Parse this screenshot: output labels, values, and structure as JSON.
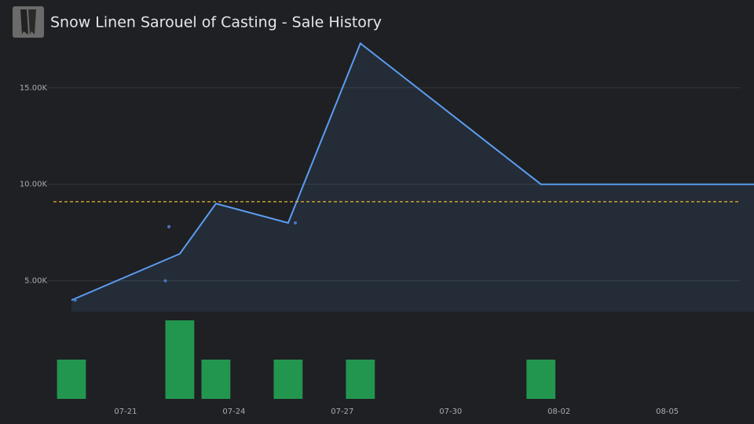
{
  "chart_data": {
    "type": "line",
    "title": "Snow Linen Sarouel of Casting - Sale History",
    "x": [
      19.5,
      22.5,
      23.5,
      25.5,
      27.5,
      32.5,
      38.4
    ],
    "series": [
      {
        "color": "#5b9cf0",
        "values": [
          4000,
          6400,
          9000,
          8000,
          17300,
          10000,
          10000
        ]
      }
    ],
    "scatter": {
      "color": "#4a78c0",
      "x": [
        19.6,
        22.1,
        22.2,
        25.7
      ],
      "values": [
        4000,
        5000,
        7800,
        8000
      ]
    },
    "average": {
      "value": 9100,
      "color": "#e5b931"
    },
    "volume": {
      "color": "#22964f",
      "x": [
        19.5,
        22.5,
        23.5,
        25.5,
        27.5,
        32.5
      ],
      "values": [
        1,
        2,
        1,
        1,
        1,
        1
      ],
      "y2lim": [
        0,
        2
      ]
    },
    "xlim": [
      19,
      38.4
    ],
    "xticks": [
      {
        "value": 21,
        "label": "07-21"
      },
      {
        "value": 24,
        "label": "07-24"
      },
      {
        "value": 27,
        "label": "07-27"
      },
      {
        "value": 30,
        "label": "07-30"
      },
      {
        "value": 33,
        "label": "08-02"
      },
      {
        "value": 36,
        "label": "08-05"
      }
    ],
    "ylim": [
      3400,
      18000
    ],
    "yticks": [
      {
        "value": 5000,
        "label": "5.00K"
      },
      {
        "value": 10000,
        "label": "10.00K"
      },
      {
        "value": 15000,
        "label": "15.00K"
      }
    ],
    "grid": true
  }
}
